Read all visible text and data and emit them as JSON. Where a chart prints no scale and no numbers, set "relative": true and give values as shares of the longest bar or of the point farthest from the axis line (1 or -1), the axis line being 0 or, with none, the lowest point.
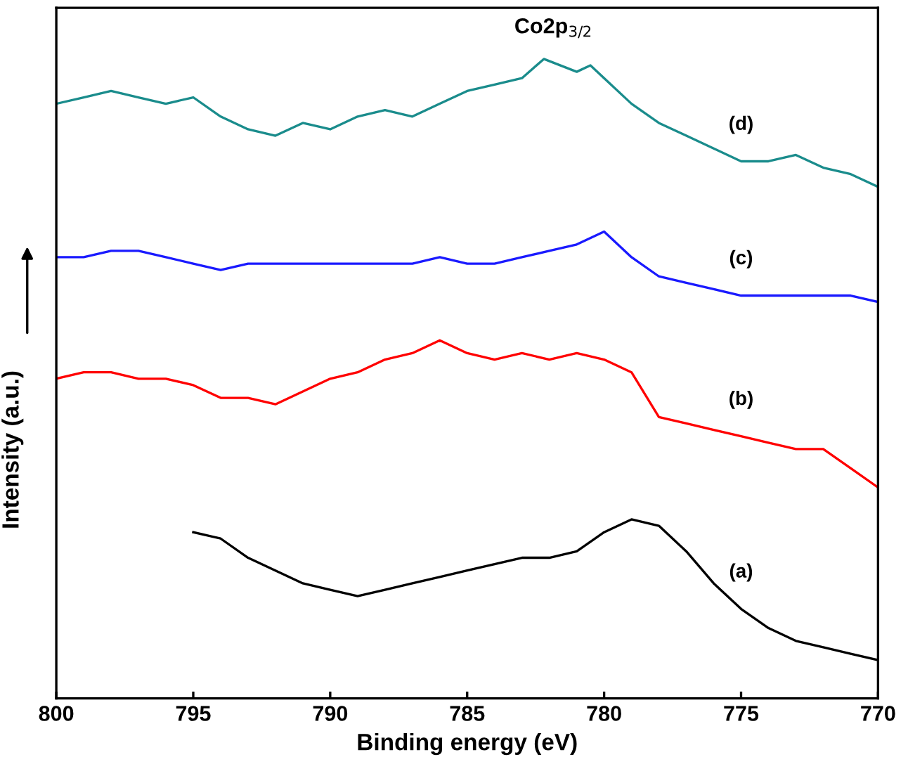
{
  "chart_data": {
    "type": "line",
    "relative": true,
    "xlabel": "Binding energy (eV)",
    "ylabel": "Intensity (a.u.)",
    "xlim": [
      800,
      770
    ],
    "xticks": [
      800,
      795,
      790,
      785,
      780,
      775,
      770
    ],
    "grid": false,
    "marker": "none",
    "line_style": "solid",
    "tick_labels": "x",
    "annotations": [
      "Co2p$_{3/2}$"
    ],
    "series": [
      {
        "name": "(d)",
        "color": "#1a8c8c",
        "x": [
          800,
          799,
          798,
          797,
          796,
          795,
          794,
          793,
          792,
          791,
          790,
          789,
          788,
          787,
          786,
          785,
          784,
          783,
          782.2,
          781,
          780.5,
          780,
          779,
          778,
          777,
          776,
          775,
          774,
          773,
          772,
          771,
          770
        ],
        "values": [
          0.93,
          0.94,
          0.95,
          0.94,
          0.93,
          0.94,
          0.91,
          0.89,
          0.88,
          0.9,
          0.89,
          0.91,
          0.92,
          0.91,
          0.93,
          0.95,
          0.96,
          0.97,
          1.0,
          0.98,
          0.99,
          0.97,
          0.93,
          0.9,
          0.88,
          0.86,
          0.84,
          0.84,
          0.85,
          0.83,
          0.82,
          0.8
        ]
      },
      {
        "name": "(c)",
        "color": "#1a1aff",
        "x": [
          800,
          799,
          798,
          797,
          796,
          795,
          794,
          793,
          792,
          791,
          790,
          789,
          788,
          787,
          786,
          785,
          784,
          783,
          782,
          781,
          780,
          779,
          778,
          777,
          776,
          775,
          774,
          773,
          772,
          771,
          770
        ],
        "values": [
          0.69,
          0.69,
          0.7,
          0.7,
          0.69,
          0.68,
          0.67,
          0.68,
          0.68,
          0.68,
          0.68,
          0.68,
          0.68,
          0.68,
          0.69,
          0.68,
          0.68,
          0.69,
          0.7,
          0.71,
          0.73,
          0.69,
          0.66,
          0.65,
          0.64,
          0.63,
          0.63,
          0.63,
          0.63,
          0.63,
          0.62
        ]
      },
      {
        "name": "(b)",
        "color": "#ff0000",
        "x": [
          800,
          799,
          798,
          797,
          796,
          795,
          794,
          793,
          792,
          791,
          790,
          789,
          788,
          787,
          786,
          785,
          784,
          783,
          782,
          781,
          780,
          779,
          778,
          777,
          776,
          775,
          774,
          773,
          772,
          771,
          770
        ],
        "values": [
          0.5,
          0.51,
          0.51,
          0.5,
          0.5,
          0.49,
          0.47,
          0.47,
          0.46,
          0.48,
          0.5,
          0.51,
          0.53,
          0.54,
          0.56,
          0.54,
          0.53,
          0.54,
          0.53,
          0.54,
          0.53,
          0.51,
          0.44,
          0.43,
          0.42,
          0.41,
          0.4,
          0.39,
          0.39,
          0.36,
          0.33
        ]
      },
      {
        "name": "(a)",
        "color": "#000000",
        "x": [
          795,
          794,
          793,
          792,
          791,
          790,
          789,
          788,
          787,
          786,
          785,
          784,
          783,
          782,
          781,
          780,
          779,
          778,
          777,
          776,
          775,
          774,
          773,
          772,
          771,
          770
        ],
        "values": [
          0.26,
          0.25,
          0.22,
          0.2,
          0.18,
          0.17,
          0.16,
          0.17,
          0.18,
          0.19,
          0.2,
          0.21,
          0.22,
          0.22,
          0.23,
          0.26,
          0.28,
          0.27,
          0.23,
          0.18,
          0.14,
          0.11,
          0.09,
          0.08,
          0.07,
          0.06
        ]
      }
    ]
  }
}
